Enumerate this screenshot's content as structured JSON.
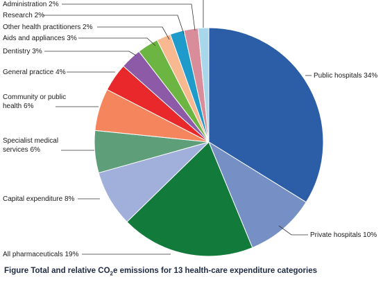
{
  "caption": {
    "prefix": "Figure",
    "text_before_sub": "Total and relative CO",
    "subscript": "2",
    "text_after_sub": "e emissions for 13 health-care expenditure categories"
  },
  "chart_data": {
    "type": "pie",
    "start_angle_deg": 0,
    "direction": "clockwise",
    "slices": [
      {
        "label": "Public hospitals 34%",
        "value": 34,
        "color": "#2c5ea8"
      },
      {
        "label": "Private hospitals 10%",
        "value": 10,
        "color": "#7690c6"
      },
      {
        "label": "All pharmaceuticals 19%",
        "value": 19,
        "color": "#127a3a"
      },
      {
        "label": "Capital expenditure 8%",
        "value": 8,
        "color": "#a0b0da"
      },
      {
        "label": "Specialist medical services 6%",
        "label_lines": [
          "Specialist medical",
          "services 6%"
        ],
        "value": 6,
        "color": "#5e9e79"
      },
      {
        "label": "Community or public health 6%",
        "label_lines": [
          "Community or public",
          "health 6%"
        ],
        "value": 6,
        "color": "#f4855d"
      },
      {
        "label": "General practice 4%",
        "value": 4,
        "color": "#e8282a"
      },
      {
        "label": "Dentistry 3%",
        "value": 3,
        "color": "#8d5aa8"
      },
      {
        "label": "Aids and appliances 3%",
        "value": 3,
        "color": "#6db543"
      },
      {
        "label": "Other health practitioners 2%",
        "value": 2,
        "color": "#f8b990"
      },
      {
        "label": "Research 2%",
        "value": 2,
        "color": "#1e9bcb"
      },
      {
        "label": "Administration 2%",
        "value": 2,
        "color": "#d98c9a"
      },
      {
        "label": "",
        "value": 1.5,
        "color": "#a8d6ea"
      }
    ]
  }
}
